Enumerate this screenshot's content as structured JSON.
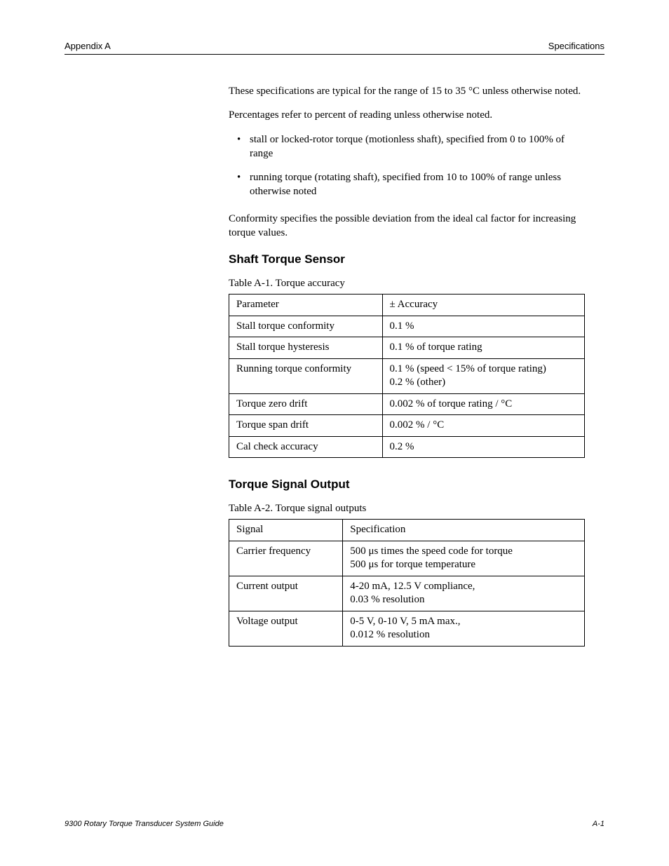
{
  "header": {
    "left": "Appendix A",
    "right": "Specifications"
  },
  "intro": {
    "p1": "These specifications are typical for the range of 15 to 35 °C unless otherwise noted.",
    "p2": "Percentages refer to percent of reading unless otherwise noted.",
    "bullets": [
      "stall or locked-rotor torque (motionless shaft), specified from 0 to 100% of range",
      "running torque (rotating shaft), specified from 10 to 100% of range unless otherwise noted"
    ],
    "p3": "Conformity specifies the possible deviation from the ideal cal factor for increasing torque values."
  },
  "sections": {
    "s1": {
      "title": "Shaft Torque Sensor",
      "caption": "Table A-1. Torque accuracy",
      "table": {
        "headers": [
          "Parameter",
          "± Accuracy"
        ],
        "rows": [
          [
            "Stall torque conformity",
            "0.1 %"
          ],
          [
            "Stall torque hysteresis",
            "0.1 % of torque rating"
          ],
          [
            "Running torque conformity",
            "0.1 % (speed < 15% of torque rating)\n0.2 % (other)"
          ],
          [
            "Torque zero drift",
            "0.002 % of torque rating / °C"
          ],
          [
            "Torque span drift",
            "0.002 % / °C"
          ],
          [
            "Cal check accuracy",
            "0.2 %"
          ]
        ]
      }
    },
    "s2": {
      "title": "Torque Signal Output",
      "caption": "Table A-2. Torque signal outputs",
      "table": {
        "headers": [
          "Signal",
          "Specification"
        ],
        "col1_width": "32%",
        "rows": [
          [
            "Carrier frequency",
            "500 μs times the speed code for torque\n500 μs for torque temperature"
          ],
          [
            "Current output",
            "4-20 mA, 12.5 V compliance,\n0.03 % resolution"
          ],
          [
            "Voltage output",
            "0-5 V, 0-10 V, 5 mA max.,\n0.012 % resolution"
          ]
        ]
      }
    }
  },
  "footer": {
    "left": "9300 Rotary Torque Transducer System Guide",
    "right": "A-1"
  }
}
